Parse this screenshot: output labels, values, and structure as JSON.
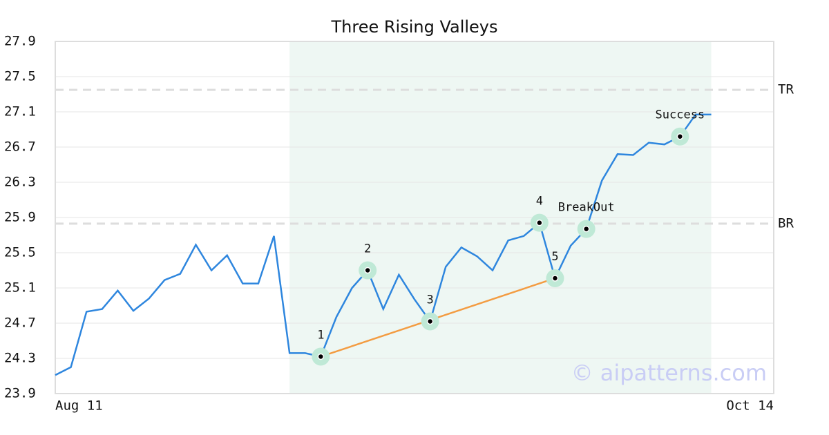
{
  "chart_data": {
    "type": "line",
    "title": "Three Rising Valleys",
    "categories": [
      "Aug 11",
      null,
      null,
      null,
      null,
      null,
      null,
      null,
      null,
      null,
      null,
      null,
      null,
      null,
      null,
      null,
      null,
      null,
      null,
      null,
      null,
      null,
      null,
      null,
      null,
      null,
      null,
      null,
      null,
      null,
      null,
      null,
      null,
      null,
      null,
      null,
      null,
      null,
      null,
      null,
      null,
      null,
      null,
      null,
      null,
      null,
      "Oct 14"
    ],
    "series": [
      {
        "color": "#2e86de",
        "values": [
          24.11,
          24.2,
          24.83,
          24.86,
          25.07,
          24.84,
          24.98,
          25.19,
          25.26,
          25.59,
          25.3,
          25.47,
          25.15,
          25.15,
          25.69,
          24.36,
          24.36,
          24.32,
          24.77,
          25.1,
          25.3,
          24.86,
          25.25,
          24.97,
          24.72,
          25.34,
          25.56,
          25.46,
          25.3,
          25.64,
          25.69,
          25.84,
          25.21,
          25.58,
          25.77,
          26.32,
          26.62,
          26.61,
          26.75,
          26.73,
          26.82,
          27.07,
          27.07,
          null,
          null,
          null,
          null
        ]
      }
    ],
    "ylim": [
      23.9,
      27.9
    ],
    "yticks": [
      23.9,
      24.3,
      24.7,
      25.1,
      25.5,
      25.9,
      26.3,
      26.7,
      27.1,
      27.5,
      27.9
    ],
    "grid": true,
    "highlight_range": [
      15,
      42
    ],
    "highlight_color": "#eef7f3",
    "hlines": [
      {
        "label": "TR",
        "value": 27.35
      },
      {
        "label": "BR",
        "value": 25.83
      }
    ],
    "markers": [
      {
        "label": "1",
        "index": 17
      },
      {
        "label": "2",
        "index": 20
      },
      {
        "label": "3",
        "index": 24
      },
      {
        "label": "4",
        "index": 31
      },
      {
        "label": "5",
        "index": 32
      },
      {
        "label": "BreakOut",
        "index": 34
      },
      {
        "label": "Success",
        "index": 40
      }
    ],
    "trend_line": {
      "from": 17,
      "to": 32,
      "color": "#f39c42"
    },
    "watermark": "© aipatterns.com"
  }
}
